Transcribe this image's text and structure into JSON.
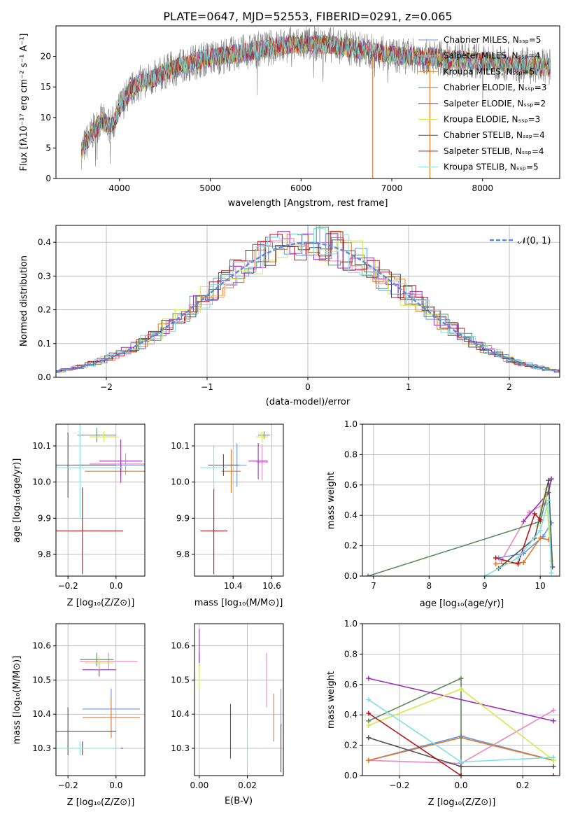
{
  "colors": {
    "chabrier_miles": "#6495ed",
    "salpeter_miles": "#e78ac3",
    "kroupa_miles": "#e07b28",
    "chabrier_elodie": "#5f8a5f",
    "salpeter_elodie": "#9b30b5",
    "kroupa_elodie": "#d4e84a",
    "chabrier_stelib": "#555555",
    "salpeter_stelib": "#b0191e",
    "kroupa_stelib": "#7fe0e3",
    "data": "#7f7f7f",
    "normal_curve": "#5b8bd9",
    "grid": "#b0b0b0"
  },
  "chart_data": [
    {
      "id": "spectrum",
      "type": "line",
      "title": "PLATE=0647, MJD=52553, FIBERID=0291, z=0.065",
      "xlabel": "wavelength [Angstrom, rest frame]",
      "ylabel": "Flux [fλ10⁻¹⁷ erg cm⁻² s⁻¹ A⁻¹]",
      "xlim": [
        3300,
        8850
      ],
      "ylim": [
        0,
        25
      ],
      "xticks": [
        "4000",
        "5000",
        "6000",
        "7000",
        "8000"
      ],
      "yticks": [
        "0",
        "5",
        "10",
        "15",
        "20"
      ],
      "grid": false,
      "legend_position": "top-right",
      "continuum_x": [
        3580,
        3700,
        3800,
        3900,
        3950,
        4000,
        4100,
        4200,
        4300,
        4400,
        4500,
        4700,
        4900,
        5100,
        5300,
        5500,
        5700,
        5900,
        6100,
        6300,
        6500,
        6700,
        6900,
        7100,
        7300,
        7500,
        7700,
        7900,
        8100,
        8300,
        8500,
        8750
      ],
      "continuum_y": [
        4.5,
        7.5,
        9.5,
        8.5,
        9.5,
        11.5,
        14,
        15.5,
        16,
        16.5,
        17.5,
        18.5,
        19.5,
        20,
        20.5,
        21,
        21.5,
        22,
        22,
        22,
        21.5,
        21,
        20.5,
        20,
        20,
        19.8,
        19.5,
        19.3,
        19,
        18.8,
        18.5,
        18.2
      ],
      "series": [
        {
          "name": "Chabrier MILES, N_SSP=5"
        },
        {
          "name": "Salpeter MILES, N_SSP=4"
        },
        {
          "name": "Kroupa MILES, N_SSP=5"
        },
        {
          "name": "Chabrier ELODIE, N_SSP=3"
        },
        {
          "name": "Salpeter ELODIE, N_SSP=2"
        },
        {
          "name": "Kroupa ELODIE, N_SSP=3"
        },
        {
          "name": "Chabrier STELIB, N_SSP=4"
        },
        {
          "name": "Salpeter STELIB, N_SSP=4"
        },
        {
          "name": "Kroupa STELIB, N_SSP=5"
        }
      ]
    },
    {
      "id": "residuals",
      "type": "line",
      "xlabel": "(data-model)/error",
      "ylabel": "Normed distribution",
      "xlim": [
        -2.5,
        2.5
      ],
      "ylim": [
        0,
        0.45
      ],
      "xticks": [
        "−2",
        "−1",
        "0",
        "1",
        "2"
      ],
      "yticks": [
        "0.0",
        "0.1",
        "0.2",
        "0.3",
        "0.4"
      ],
      "grid": true,
      "legend": "𝒩(0, 1)",
      "legend_position": "top-right"
    },
    {
      "id": "age_vs_Z",
      "type": "scatter",
      "xlabel": "Z [log₁₀(Z/Z⊙)]",
      "ylabel": "age  [log₁₀(age/yr)]",
      "xlim": [
        -0.25,
        0.12
      ],
      "ylim": [
        9.74,
        10.16
      ],
      "xticks": [
        "−0.2",
        "0.0"
      ],
      "yticks": [
        "9.8",
        "9.9",
        "10.0",
        "10.1"
      ],
      "points": [
        {
          "model": "chabrier_miles",
          "x": 0.02,
          "y": 10.047,
          "xerr": 0.18,
          "yerr": 0.02
        },
        {
          "model": "salpeter_miles",
          "x": 0.04,
          "y": 10.05,
          "xerr": 0.15,
          "yerr": 0.03
        },
        {
          "model": "kroupa_miles",
          "x": 0.02,
          "y": 10.03,
          "xerr": 0.15,
          "yerr": 0.02
        },
        {
          "model": "chabrier_elodie",
          "x": -0.08,
          "y": 10.13,
          "xerr": 0.08,
          "yerr": 0.02
        },
        {
          "model": "salpeter_elodie",
          "x": 0.02,
          "y": 10.058,
          "xerr": 0.09,
          "yerr": 0.06
        },
        {
          "model": "kroupa_elodie",
          "x": -0.05,
          "y": 10.125,
          "xerr": 0.06,
          "yerr": 0.015
        },
        {
          "model": "chabrier_stelib",
          "x": -0.2,
          "y": 10.047,
          "xerr": 0.2,
          "yerr": 0.09
        },
        {
          "model": "salpeter_stelib",
          "x": -0.14,
          "y": 9.865,
          "xerr": 0.17,
          "yerr": 0.12
        },
        {
          "model": "kroupa_stelib",
          "x": -0.15,
          "y": 10.04,
          "xerr": 0.18,
          "yerr": 0.14
        }
      ]
    },
    {
      "id": "age_vs_mass",
      "type": "scatter",
      "xlabel": "mass [log₁₀(M/M⊙)]",
      "ylabel": "",
      "xlim": [
        10.2,
        10.66
      ],
      "ylim": [
        9.74,
        10.16
      ],
      "xticks": [
        "10.4",
        "10.6"
      ],
      "yticks": [
        "9.8",
        "9.9",
        "10.0",
        "10.1"
      ],
      "points": [
        {
          "model": "chabrier_miles",
          "x": 10.42,
          "y": 10.047,
          "xerr": 0.05,
          "yerr": 0.06
        },
        {
          "model": "salpeter_miles",
          "x": 10.55,
          "y": 10.055,
          "xerr": 0.03,
          "yerr": 0.05
        },
        {
          "model": "kroupa_miles",
          "x": 10.39,
          "y": 10.03,
          "xerr": 0.05,
          "yerr": 0.06
        },
        {
          "model": "chabrier_elodie",
          "x": 10.56,
          "y": 10.13,
          "xerr": 0.03,
          "yerr": 0.01
        },
        {
          "model": "salpeter_elodie",
          "x": 10.53,
          "y": 10.058,
          "xerr": 0.05,
          "yerr": 0.05
        },
        {
          "model": "kroupa_elodie",
          "x": 10.55,
          "y": 10.125,
          "xerr": 0.03,
          "yerr": 0.015
        },
        {
          "model": "chabrier_stelib",
          "x": 10.35,
          "y": 10.047,
          "xerr": 0.08,
          "yerr": 0.03
        },
        {
          "model": "salpeter_stelib",
          "x": 10.3,
          "y": 9.865,
          "xerr": 0.07,
          "yerr": 0.12
        },
        {
          "model": "kroupa_stelib",
          "x": 10.3,
          "y": 10.04,
          "xerr": 0.07,
          "yerr": 0.06
        }
      ]
    },
    {
      "id": "weight_vs_age",
      "type": "line",
      "xlabel": "age  [log₁₀(age/yr)]",
      "ylabel": "mass weight",
      "xlim": [
        6.8,
        10.35
      ],
      "ylim": [
        0,
        1
      ],
      "xticks": [
        "7",
        "8",
        "9",
        "10"
      ],
      "yticks": [
        "0.0",
        "0.2",
        "0.4",
        "0.6",
        "0.8",
        "1.0"
      ],
      "grid": true,
      "series": [
        {
          "model": "chabrier_miles",
          "x": [
            9.25,
            9.7,
            10.05,
            10.2
          ],
          "y": [
            0.12,
            0.15,
            0.26,
            0.35
          ]
        },
        {
          "model": "salpeter_miles",
          "x": [
            9.3,
            9.8,
            10.1
          ],
          "y": [
            0.1,
            0.42,
            0.48
          ]
        },
        {
          "model": "kroupa_miles",
          "x": [
            9.2,
            9.7,
            10.0,
            10.15
          ],
          "y": [
            0.08,
            0.09,
            0.25,
            0.24
          ]
        },
        {
          "model": "chabrier_elodie",
          "x": [
            6.9,
            10.0,
            10.2
          ],
          "y": [
            0.0,
            0.36,
            0.64
          ]
        },
        {
          "model": "salpeter_elodie",
          "x": [
            9.7,
            10.15,
            10.2
          ],
          "y": [
            0.36,
            0.55,
            0.64
          ]
        },
        {
          "model": "kroupa_elodie",
          "x": [
            9.95,
            10.1,
            10.2
          ],
          "y": [
            0.33,
            0.57,
            0.1
          ]
        },
        {
          "model": "chabrier_stelib",
          "x": [
            9.25,
            9.9,
            10.15,
            10.22
          ],
          "y": [
            0.05,
            0.25,
            0.63,
            0.06
          ]
        },
        {
          "model": "salpeter_stelib",
          "x": [
            9.2,
            9.6,
            9.9,
            10.0
          ],
          "y": [
            0.12,
            0.08,
            0.41,
            0.37
          ]
        },
        {
          "model": "kroupa_stelib",
          "x": [
            9.0,
            9.6,
            10.0,
            10.15,
            10.2
          ],
          "y": [
            0.0,
            0.12,
            0.3,
            0.5,
            0.02
          ]
        }
      ]
    },
    {
      "id": "mass_vs_Z",
      "type": "scatter",
      "xlabel": "Z [log₁₀(Z/Z⊙)]",
      "ylabel": "mass [log₁₀(M/M⊙)]",
      "xlim": [
        -0.25,
        0.12
      ],
      "ylim": [
        10.22,
        10.665
      ],
      "xticks": [
        "−0.2",
        "0.0"
      ],
      "yticks": [
        "10.3",
        "10.4",
        "10.5",
        "10.6"
      ],
      "points": [
        {
          "model": "chabrier_miles",
          "x": -0.02,
          "y": 10.415,
          "xerr": 0.12,
          "yerr": 0.06
        },
        {
          "model": "salpeter_miles",
          "x": -0.03,
          "y": 10.555,
          "xerr": 0.12,
          "yerr": 0.025
        },
        {
          "model": "kroupa_miles",
          "x": -0.02,
          "y": 10.39,
          "xerr": 0.12,
          "yerr": 0.06
        },
        {
          "model": "chabrier_elodie",
          "x": -0.08,
          "y": 10.56,
          "xerr": 0.07,
          "yerr": 0.02
        },
        {
          "model": "salpeter_elodie",
          "x": -0.07,
          "y": 10.53,
          "xerr": 0.07,
          "yerr": 0.02
        },
        {
          "model": "kroupa_elodie",
          "x": -0.07,
          "y": 10.55,
          "xerr": 0.06,
          "yerr": 0.02
        },
        {
          "model": "chabrier_stelib",
          "x": -0.2,
          "y": 10.35,
          "xerr": 0.2,
          "yerr": 0.07
        },
        {
          "model": "salpeter_stelib",
          "x": -0.14,
          "y": 10.3,
          "xerr": 0.17,
          "yerr": 0.02
        },
        {
          "model": "kroupa_stelib",
          "x": -0.15,
          "y": 10.3,
          "xerr": 0.17,
          "yerr": 0.02
        }
      ]
    },
    {
      "id": "mass_vs_ebv",
      "type": "scatter",
      "xlabel": "E(B-V)",
      "ylabel": "",
      "xlim": [
        -0.002,
        0.035
      ],
      "ylim": [
        10.22,
        10.665
      ],
      "xticks": [
        "0.00",
        "0.02"
      ],
      "yticks": [
        "10.3",
        "10.4",
        "10.5",
        "10.6"
      ],
      "points": [
        {
          "model": "chabrier_miles",
          "x": 0.034,
          "y": 10.415,
          "xerr": 0,
          "yerr": 0.06
        },
        {
          "model": "salpeter_miles",
          "x": 0.028,
          "y": 10.5,
          "xerr": 0,
          "yerr": 0.08
        },
        {
          "model": "kroupa_miles",
          "x": 0.031,
          "y": 10.39,
          "xerr": 0,
          "yerr": 0.07
        },
        {
          "model": "chabrier_elodie",
          "x": 0.0,
          "y": 10.56,
          "xerr": 0,
          "yerr": 0.02
        },
        {
          "model": "salpeter_elodie",
          "x": 0.0,
          "y": 10.6,
          "xerr": 0,
          "yerr": 0.05
        },
        {
          "model": "kroupa_elodie",
          "x": 0.0,
          "y": 10.51,
          "xerr": 0,
          "yerr": 0.04
        },
        {
          "model": "chabrier_stelib",
          "x": 0.013,
          "y": 10.35,
          "xerr": 0,
          "yerr": 0.08
        },
        {
          "model": "salpeter_stelib",
          "x": 0.034,
          "y": 10.3,
          "xerr": 0,
          "yerr": 0.07
        },
        {
          "model": "kroupa_stelib",
          "x": 0.02,
          "y": 10.3,
          "xerr": 0,
          "yerr": 0.06
        }
      ]
    },
    {
      "id": "weight_vs_Z",
      "type": "line",
      "xlabel": "Z [log₁₀(Z/Z⊙)]",
      "ylabel": "mass weight",
      "xlim": [
        -0.32,
        0.32
      ],
      "ylim": [
        0,
        1
      ],
      "xticks": [
        "−0.2",
        "0.0",
        "0.2"
      ],
      "yticks": [
        "0.0",
        "0.2",
        "0.4",
        "0.6",
        "0.8",
        "1.0"
      ],
      "grid": true,
      "series": [
        {
          "model": "chabrier_miles",
          "x": [
            -0.3,
            0.0,
            0.3
          ],
          "y": [
            0.1,
            0.26,
            0.1
          ]
        },
        {
          "model": "salpeter_miles",
          "x": [
            -0.3,
            0.0,
            0.3
          ],
          "y": [
            0.1,
            0.08,
            0.43
          ]
        },
        {
          "model": "kroupa_miles",
          "x": [
            -0.3,
            0.0,
            0.3
          ],
          "y": [
            0.1,
            0.25,
            0.1
          ]
        },
        {
          "model": "chabrier_elodie",
          "x": [
            -0.3,
            0.0,
            0.0
          ],
          "y": [
            0.36,
            0.64,
            0.0
          ]
        },
        {
          "model": "salpeter_elodie",
          "x": [
            -0.3,
            0.3
          ],
          "y": [
            0.64,
            0.36
          ]
        },
        {
          "model": "kroupa_elodie",
          "x": [
            -0.3,
            0.0,
            0.3
          ],
          "y": [
            0.33,
            0.57,
            0.1
          ]
        },
        {
          "model": "chabrier_stelib",
          "x": [
            -0.3,
            0.0,
            0.3
          ],
          "y": [
            0.25,
            0.06,
            0.06
          ]
        },
        {
          "model": "salpeter_stelib",
          "x": [
            -0.3,
            0.0,
            0.3
          ],
          "y": [
            0.41,
            0.0,
            0.0
          ]
        },
        {
          "model": "kroupa_stelib",
          "x": [
            -0.3,
            0.0,
            0.3
          ],
          "y": [
            0.5,
            0.09,
            0.12
          ]
        }
      ]
    }
  ]
}
